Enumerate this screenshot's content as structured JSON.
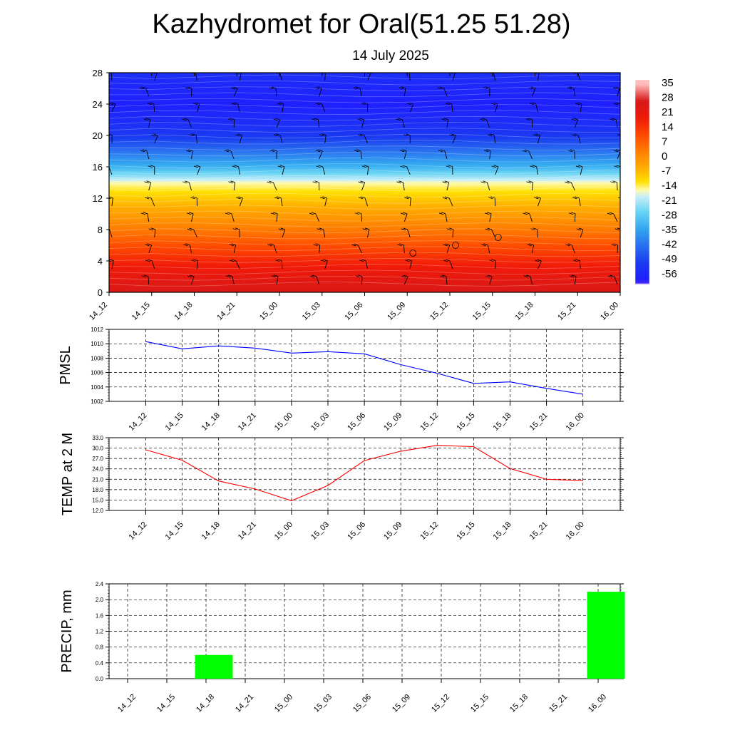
{
  "title": "Kazhydromet for Oral(51.25 51.28)",
  "subtitle": "14 July 2025",
  "colors": {
    "pmsl_line": "#0000ff",
    "temp_line": "#ff0000",
    "precip_bar": "#00ff00"
  },
  "chart_data": [
    {
      "type": "heatmap",
      "x": [
        "14_12",
        "14_15",
        "14_18",
        "14_21",
        "15_00",
        "15_03",
        "15_06",
        "15_09",
        "15_12",
        "15_15",
        "15_18",
        "15_21",
        "16_00"
      ],
      "y_ticks": [
        "0",
        "4",
        "8",
        "12",
        "16",
        "20",
        "24",
        "28"
      ],
      "ylim": [
        0,
        28
      ],
      "z_levels_top_to_bottom": [
        35,
        28,
        21,
        14,
        7,
        0,
        -7,
        -14,
        -21,
        -28,
        -35,
        -42,
        -49,
        -56
      ],
      "colorbar_labels": [
        "35",
        "28",
        "21",
        "14",
        "7",
        "0",
        "-7",
        "-14",
        "-21",
        "-28",
        "-35",
        "-42",
        "-49",
        "-56"
      ],
      "approx_temperature_profile": [
        {
          "height": 0,
          "value": 28
        },
        {
          "height": 4,
          "value": 18
        },
        {
          "height": 8,
          "value": 5
        },
        {
          "height": 12,
          "value": -7
        },
        {
          "height": 14,
          "value": -14
        },
        {
          "height": 16,
          "value": -30
        },
        {
          "height": 20,
          "value": -49
        },
        {
          "height": 24,
          "value": -56
        },
        {
          "height": 28,
          "value": -52
        }
      ],
      "overlay": "wind barbs"
    },
    {
      "type": "line",
      "ylabel": "PMSL",
      "x": [
        "14_12",
        "14_15",
        "14_18",
        "14_21",
        "15_00",
        "15_03",
        "15_06",
        "15_09",
        "15_12",
        "15_15",
        "15_18",
        "15_21",
        "16_00"
      ],
      "y_ticks": [
        "1002",
        "1004",
        "1006",
        "1008",
        "1010",
        "1012"
      ],
      "ylim": [
        1002,
        1012
      ],
      "values": [
        1010.3,
        1009.3,
        1009.7,
        1009.4,
        1008.7,
        1008.9,
        1008.6,
        1007.1,
        1005.9,
        1004.5,
        1004.7,
        1003.8,
        1003.0
      ],
      "grid": true
    },
    {
      "type": "line",
      "ylabel": "TEMP at 2 M",
      "x": [
        "14_12",
        "14_15",
        "14_18",
        "14_21",
        "15_00",
        "15_03",
        "15_06",
        "15_09",
        "15_12",
        "15_15",
        "15_18",
        "15_21",
        "16_00"
      ],
      "y_ticks": [
        "12.0",
        "15.0",
        "18.0",
        "21.0",
        "24.0",
        "27.0",
        "30.0",
        "33.0"
      ],
      "ylim": [
        12,
        33
      ],
      "values": [
        29.5,
        26.5,
        20.5,
        18.2,
        14.8,
        19.2,
        26.4,
        29.1,
        30.8,
        30.4,
        24.1,
        21.0,
        20.6
      ],
      "grid": true
    },
    {
      "type": "bar",
      "ylabel": "PRECIP, mm",
      "categories": [
        "14_12",
        "14_15",
        "14_18",
        "14_21",
        "15_00",
        "15_03",
        "15_06",
        "15_09",
        "15_12",
        "15_15",
        "15_18",
        "15_21",
        "16_00"
      ],
      "y_ticks": [
        "0.0",
        "0.4",
        "0.8",
        "1.2",
        "1.6",
        "2.0",
        "2.4"
      ],
      "ylim": [
        0,
        2.4
      ],
      "values": [
        0,
        0,
        0.6,
        0,
        0,
        0,
        0,
        0,
        0,
        0,
        0,
        0,
        2.2
      ],
      "grid": true
    }
  ]
}
